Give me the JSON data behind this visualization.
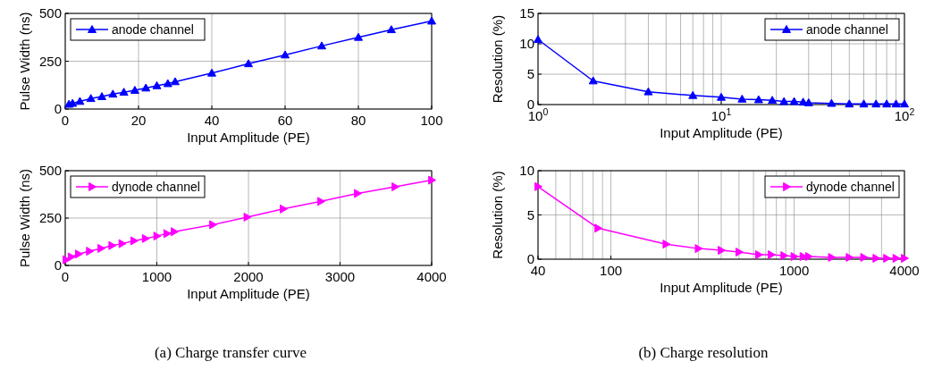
{
  "chart_data": [
    {
      "type": "line",
      "xlabel": "Input Amplitude (PE)",
      "ylabel": "Pulse Width (ns)",
      "xlim": [
        0,
        100
      ],
      "xticks": [
        0,
        20,
        40,
        60,
        80,
        100
      ],
      "ylim": [
        0,
        500
      ],
      "yticks": [
        0,
        250,
        500
      ],
      "grid": true,
      "legend": "top left",
      "marker": "triangle",
      "line_style": "solid",
      "series": [
        {
          "name": "anode channel",
          "color": "#0000ff",
          "x": [
            1,
            2,
            4,
            7,
            10,
            13,
            16,
            19,
            22,
            25,
            28,
            30,
            40,
            50,
            60,
            70,
            80,
            89,
            100
          ],
          "values": [
            25,
            30,
            40,
            55,
            65,
            78,
            88,
            98,
            110,
            122,
            133,
            143,
            188,
            237,
            283,
            330,
            375,
            415,
            460
          ]
        }
      ]
    },
    {
      "type": "line",
      "xlabel": "Input Amplitude (PE)",
      "ylabel": "Resolution (%)",
      "log": "x",
      "xlim": [
        1,
        100
      ],
      "xticks": [
        {
          "value": 1,
          "label": "10$^{0}$"
        },
        {
          "value": 10,
          "label": "10$^{1}$"
        },
        {
          "value": 100,
          "label": "10$^{2}$"
        }
      ],
      "ylim": [
        0,
        15
      ],
      "yticks": [
        0,
        5,
        10,
        15
      ],
      "grid": true,
      "legend": "top right",
      "marker": "triangle",
      "line_style": "solid",
      "series": [
        {
          "name": "anode channel",
          "color": "#0000ff",
          "x": [
            1,
            2,
            4,
            7,
            10,
            13,
            16,
            19,
            22,
            25,
            28,
            30,
            40,
            50,
            60,
            70,
            80,
            90,
            100
          ],
          "values": [
            10.7,
            3.9,
            2.1,
            1.5,
            1.2,
            0.9,
            0.8,
            0.7,
            0.5,
            0.5,
            0.4,
            0.3,
            0.2,
            0.1,
            0.1,
            0.1,
            0.1,
            0.1,
            0.1
          ]
        }
      ]
    },
    {
      "type": "line",
      "xlabel": "Input Amplitude (PE)",
      "ylabel": "Pulse Width (ns)",
      "xlim": [
        0,
        4000
      ],
      "xticks": [
        0,
        1000,
        2000,
        3000,
        4000
      ],
      "ylim": [
        0,
        500
      ],
      "yticks": [
        0,
        250,
        500
      ],
      "grid": true,
      "legend": "top left",
      "marker": "triangle-right",
      "line_style": "solid",
      "annotations": [
        "(a) Charge transfer curve"
      ],
      "series": [
        {
          "name": "dynode channel",
          "color": "#ff00ff",
          "x": [
            10,
            65,
            145,
            265,
            390,
            510,
            620,
            750,
            875,
            1000,
            1110,
            1190,
            1610,
            1985,
            2380,
            2790,
            3190,
            3600,
            4000
          ],
          "values": [
            30,
            45,
            60,
            75,
            90,
            105,
            115,
            130,
            142,
            155,
            168,
            178,
            215,
            255,
            298,
            338,
            380,
            415,
            450
          ]
        }
      ]
    },
    {
      "type": "line",
      "xlabel": "Input Amplitude (PE)",
      "ylabel": "Resolution (%)",
      "log": "x",
      "xlim": [
        40,
        4000
      ],
      "xticks": [
        40,
        100,
        1000,
        4000
      ],
      "ylim": [
        0,
        10
      ],
      "yticks": [
        0,
        5,
        10
      ],
      "grid": true,
      "legend": "top right",
      "marker": "triangle-right",
      "line_style": "solid",
      "annotations": [
        "(b) Charge resolution"
      ],
      "series": [
        {
          "name": "dynode channel",
          "color": "#ff00ff",
          "x": [
            40,
            85,
            200,
            300,
            400,
            500,
            640,
            750,
            880,
            1000,
            1120,
            1200,
            1600,
            2000,
            2400,
            2800,
            3200,
            3600,
            4000
          ],
          "values": [
            8.2,
            3.5,
            1.7,
            1.2,
            1.0,
            0.8,
            0.5,
            0.5,
            0.4,
            0.3,
            0.3,
            0.3,
            0.2,
            0.2,
            0.2,
            0.1,
            0.1,
            0.1,
            0.1
          ]
        }
      ]
    }
  ]
}
